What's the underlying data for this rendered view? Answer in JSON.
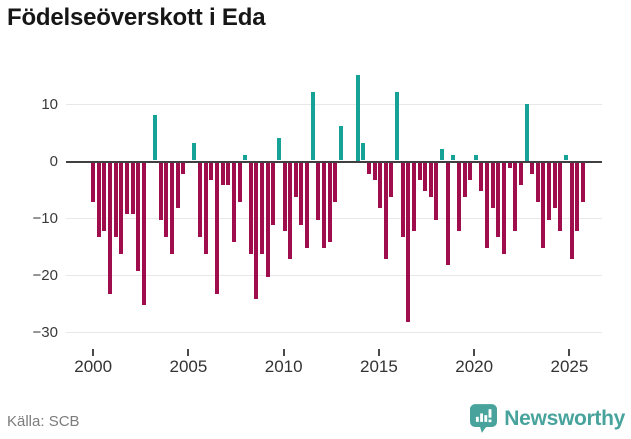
{
  "header": {
    "title": "Födelseöverskott i Eda"
  },
  "footer": {
    "source_label": "Källa: SCB",
    "brand": "Newsworthy"
  },
  "colors": {
    "positive": "#17a298",
    "negative": "#a00d4d",
    "zero_line": "#404040",
    "grid": "#e8e8e8",
    "brand_teal": "#47a39b",
    "axis_text": "#333333",
    "source_text": "#7c7c7c"
  },
  "icons": {
    "brand_icon": "newsworthy-speech-bubble-bar-chart"
  },
  "chart_data": {
    "type": "bar",
    "title": "Födelseöverskott i Eda",
    "grid": true,
    "legend": false,
    "ylim": [
      -30,
      16
    ],
    "y_axis": {
      "ticks": [
        {
          "value": 10,
          "label": "10"
        },
        {
          "value": 0,
          "label": "0"
        },
        {
          "value": -10,
          "label": "−10"
        },
        {
          "value": -20,
          "label": "−20"
        },
        {
          "value": -30,
          "label": "−30"
        }
      ]
    },
    "x_axis": {
      "tick_years": [
        2000,
        2005,
        2010,
        2015,
        2020,
        2025
      ],
      "start_year": 2000.0,
      "end_year": 2025.7
    },
    "series": [
      {
        "name": "Födelseöverskott",
        "values": [
          -7,
          -13,
          -12,
          -23,
          -13,
          -16,
          -9,
          -9,
          -19,
          -25,
          0,
          8,
          -10,
          -13,
          -16,
          -8,
          -2,
          0,
          3,
          -13,
          -16,
          -3,
          -23,
          -4,
          -4,
          -14,
          -7,
          1,
          -16,
          -24,
          -16,
          -20,
          -11,
          4,
          -12,
          -17,
          -6,
          -11,
          -15,
          12,
          -10,
          -15,
          -14,
          -7,
          6,
          0,
          0,
          15,
          3,
          -2,
          -3,
          -8,
          -17,
          -6,
          12,
          -13,
          -28,
          -12,
          -3,
          -5,
          -6,
          -10,
          2,
          -18,
          1,
          -12,
          -6,
          -3,
          1,
          -5,
          -15,
          -8,
          -13,
          -16,
          -1,
          -12,
          -4,
          10,
          -2,
          -7,
          -15,
          -10,
          -8,
          -12,
          1,
          -17,
          -12,
          -7
        ]
      }
    ]
  }
}
